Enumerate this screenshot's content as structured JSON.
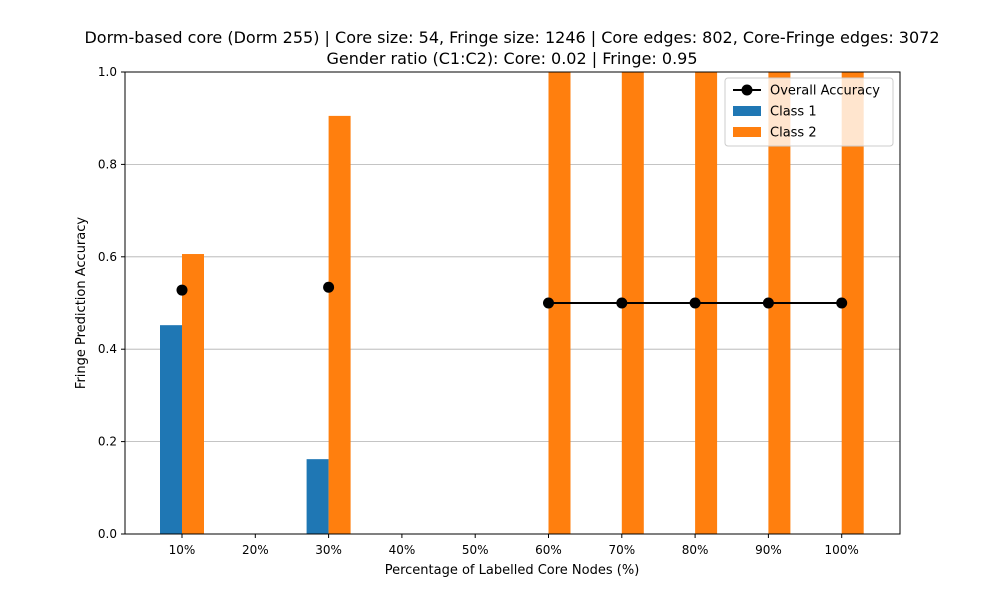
{
  "chart_data": {
    "type": "bar",
    "title_line1": "Dorm-based core (Dorm 255) | Core size: 54, Fringe size: 1246 | Core edges: 802, Core-Fringe edges: 3072",
    "title_line2": "Gender ratio (C1:C2): Core: 0.02 | Fringe: 0.95",
    "xlabel": "Percentage of Labelled Core Nodes (%)",
    "ylabel": "Fringe Prediction Accuracy",
    "ylim": [
      0,
      1.0
    ],
    "yticks": [
      "0.0",
      "0.2",
      "0.4",
      "0.6",
      "0.8",
      "1.0"
    ],
    "categories": [
      "10%",
      "20%",
      "30%",
      "40%",
      "50%",
      "60%",
      "70%",
      "80%",
      "90%",
      "100%"
    ],
    "series": [
      {
        "name": "Class 1",
        "kind": "bar",
        "color": "#1f77b4",
        "values": [
          0.452,
          null,
          0.162,
          null,
          null,
          0,
          0,
          0,
          0,
          0
        ]
      },
      {
        "name": "Class 2",
        "kind": "bar",
        "color": "#ff7f0e",
        "values": [
          0.606,
          null,
          0.905,
          null,
          null,
          1.0,
          1.0,
          1.0,
          1.0,
          1.0
        ]
      },
      {
        "name": "Overall Accuracy",
        "kind": "line",
        "color": "#000000",
        "values": [
          0.528,
          null,
          0.534,
          null,
          null,
          0.5,
          0.5,
          0.5,
          0.5,
          0.5
        ]
      }
    ],
    "grid": "y",
    "legend_position": "top-right"
  }
}
